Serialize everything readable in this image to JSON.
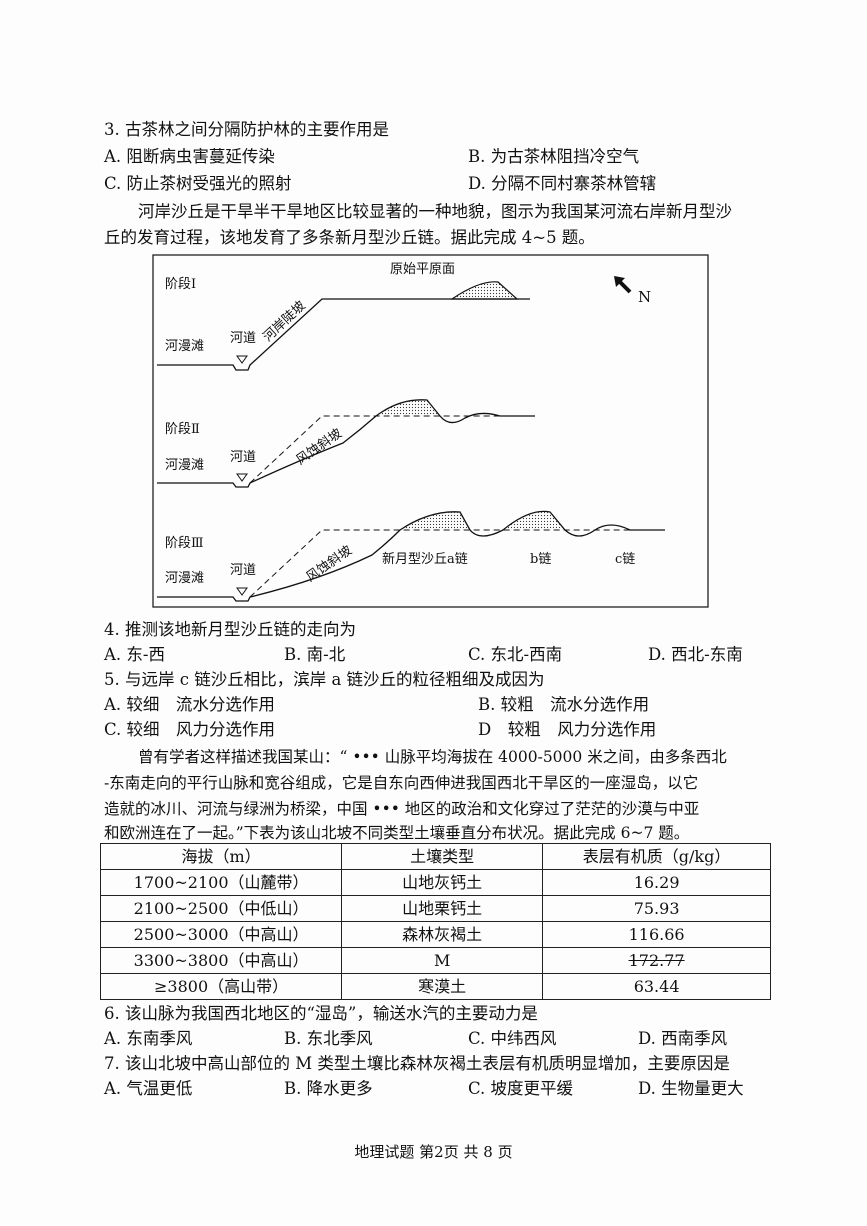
{
  "q3": {
    "stem": "3. 古茶林之间分隔防护林的主要作用是",
    "options": [
      "A. 阻断病虫害蔓延传染",
      "B. 为古茶林阻挡冷空气",
      "C. 防止茶树受强光的照射",
      "D. 分隔不同村寨茶林管辖"
    ]
  },
  "intro45": [
    "河岸沙丘是干旱半干旱地区比较显著的一种地貌，图示为我国某河流右岸新月型沙",
    "丘的发育过程，该地发育了多条新月型沙丘链。据此完成 4~5 题。"
  ],
  "diagram": {
    "stages": [
      "阶段Ⅰ",
      "阶段Ⅱ",
      "阶段Ⅲ"
    ],
    "floodplain": "河漫滩",
    "channel": "河道",
    "steep_bank": "河岸陡坡",
    "original_plain": "原始平原面",
    "erosion_slope": "风蚀斜坡",
    "chain_a": "新月型沙丘a链",
    "chain_b": "b链",
    "chain_c": "c链",
    "north": "N",
    "north_icon": "arrow-northwest-icon"
  },
  "q4": {
    "stem": "4. 推测该地新月型沙丘链的走向为",
    "options": [
      "A. 东-西",
      "B. 南-北",
      "C. 东北-西南",
      "D. 西北-东南"
    ]
  },
  "q5": {
    "stem": "5. 与远岸 c 链沙丘相比，滨岸 a 链沙丘的粒径粗细及成因为",
    "options": [
      "A. 较细　流水分选作用",
      "B. 较粗　流水分选作用",
      "C. 较细　风力分选作用",
      "D　较粗　风力分选作用"
    ]
  },
  "intro67": [
    "曾有学者这样描述我国某山：“ ••• 山脉平均海拔在 4000-5000 米之间，由多条西北",
    "-东南走向的平行山脉和宽谷组成，它是自东向西伸进我国西北干旱区的一座湿岛，以它",
    "造就的冰川、河流与绿洲为桥梁，中国 ••• 地区的政治和文化穿过了茫茫的沙漠与中亚",
    "和欧洲连在了一起。”下表为该山北坡不同类型土壤垂直分布状况。据此完成 6~7 题。"
  ],
  "table": {
    "headers": [
      "海拔（m）",
      "土壤类型",
      "表层有机质（g/kg）"
    ],
    "rows": [
      [
        "1700~2100（山麓带）",
        "山地灰钙土",
        "16.29"
      ],
      [
        "2100~2500（中低山）",
        "山地栗钙土",
        "75.93"
      ],
      [
        "2500~3000（中高山）",
        "森林灰褐土",
        "116.66"
      ],
      [
        "3300~3800（中高山）",
        "M",
        "172.77"
      ],
      [
        "≥3800（高山带）",
        "寒漠土",
        "63.44"
      ]
    ]
  },
  "q6": {
    "stem": "6. 该山脉为我国西北地区的“湿岛”，输送水汽的主要动力是",
    "options": [
      "A. 东南季风",
      "B. 东北季风",
      "C. 中纬西风",
      "D. 西南季风"
    ]
  },
  "q7": {
    "stem": "7. 该山北坡中高山部位的 M 类型土壤比森林灰褐土表层有机质明显增加，主要原因是",
    "options": [
      "A. 气温更低",
      "B. 降水更多",
      "C. 坡度更平缓",
      "D. 生物量更大"
    ]
  },
  "footer": "地理试题 第2页 共 8 页"
}
